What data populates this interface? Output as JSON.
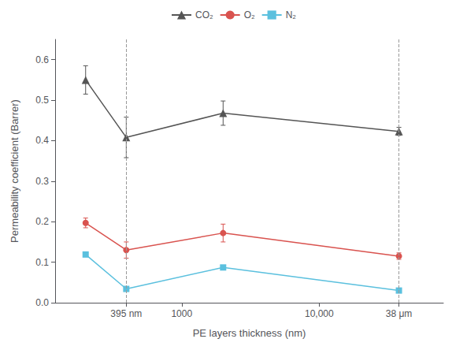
{
  "chart_data": {
    "type": "line",
    "xlabel": "PE layers thickness (nm)",
    "ylabel": "Permeability coefficient (Barrer)",
    "x": [
      200,
      395,
      2000,
      38000
    ],
    "series": [
      {
        "name": "CO₂",
        "color": "#555555",
        "marker": "triangle",
        "values": [
          0.55,
          0.408,
          0.468,
          0.423
        ],
        "errors": [
          0.035,
          0.05,
          0.03,
          0.01
        ]
      },
      {
        "name": "O₂",
        "color": "#d9534f",
        "marker": "circle",
        "values": [
          0.197,
          0.13,
          0.172,
          0.115
        ],
        "errors": [
          0.012,
          0.02,
          0.022,
          0.008
        ]
      },
      {
        "name": "N₂",
        "color": "#5bc0de",
        "marker": "square",
        "values": [
          0.119,
          0.034,
          0.087,
          0.03
        ],
        "errors": [
          0.003,
          0.004,
          0.005,
          0.003
        ]
      }
    ],
    "xlim": [
      120,
      80000
    ],
    "ylim": [
      0.0,
      0.65
    ],
    "xticks": [
      {
        "value": 395,
        "label": "395 nm"
      },
      1000,
      {
        "value": 10000,
        "label": "10,000"
      },
      {
        "value": 38000,
        "label": "38 μm"
      }
    ],
    "yticks": [
      {
        "value": 0,
        "label": "0.0"
      },
      0.1,
      0.2,
      0.3,
      0.4,
      0.5,
      0.6
    ],
    "log": "x",
    "grid": false,
    "legend": "top",
    "vlines": [
      395,
      38000
    ]
  }
}
